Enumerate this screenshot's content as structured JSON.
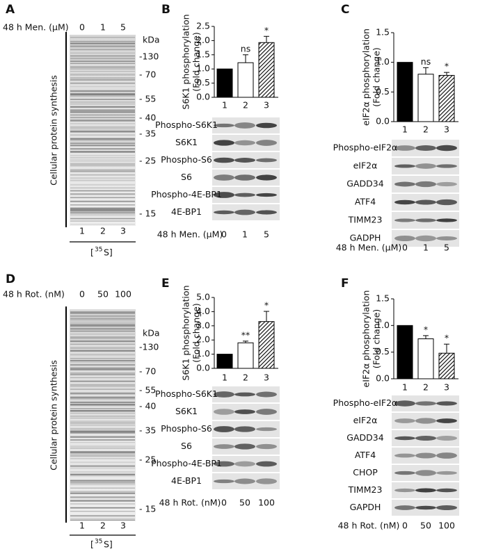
{
  "chart_data": [
    {
      "type": "bar",
      "ylabel": [
        "S6K1 phosphorylation",
        "(Fold change)"
      ],
      "categories": [
        "1",
        "2",
        "3"
      ],
      "values": [
        1.0,
        1.22,
        1.93
      ],
      "errors": [
        null,
        0.28,
        0.22
      ],
      "fills": [
        "#000000",
        "#ffffff",
        "hatch"
      ],
      "ylim": [
        0,
        2.5
      ],
      "yticks": [
        {
          "value": 0,
          "label": "0.0"
        },
        {
          "value": 0.5,
          "label": "0.5"
        },
        {
          "value": 1,
          "label": "1.0"
        },
        {
          "value": 1.5,
          "label": "1.5"
        },
        {
          "value": 2,
          "label": "2.0"
        },
        {
          "value": 2.5,
          "label": "2.5"
        }
      ],
      "annotations": [
        null,
        "ns",
        "*"
      ]
    },
    {
      "type": "bar",
      "ylabel": [
        "eIF2α phosphorylation",
        "(Fold change)"
      ],
      "categories": [
        "1",
        "2",
        "3"
      ],
      "values": [
        1.0,
        0.8,
        0.78
      ],
      "errors": [
        null,
        0.11,
        0.05
      ],
      "fills": [
        "#000000",
        "#ffffff",
        "hatch"
      ],
      "ylim": [
        0,
        1.5
      ],
      "yticks": [
        {
          "value": 0,
          "label": "0.0"
        },
        {
          "value": 0.5,
          "label": "0.5"
        },
        {
          "value": 1,
          "label": "1.0"
        },
        {
          "value": 1.5,
          "label": "1.5"
        }
      ],
      "annotations": [
        null,
        "ns",
        "*"
      ]
    },
    {
      "type": "bar",
      "ylabel": [
        "S6K1 phosphorylation",
        "(Fold change)"
      ],
      "categories": [
        "1",
        "2",
        "3"
      ],
      "values": [
        1.0,
        1.8,
        3.3
      ],
      "errors": [
        null,
        0.12,
        0.72
      ],
      "fills": [
        "#000000",
        "#ffffff",
        "hatch"
      ],
      "ylim": [
        0,
        5
      ],
      "yticks": [
        {
          "value": 0,
          "label": "0.0"
        },
        {
          "value": 1,
          "label": "1.0"
        },
        {
          "value": 2,
          "label": "2.0"
        },
        {
          "value": 3,
          "label": "3.0"
        },
        {
          "value": 4,
          "label": "4.0"
        },
        {
          "value": 5,
          "label": "5.0"
        }
      ],
      "annotations": [
        null,
        "**",
        "*"
      ]
    },
    {
      "type": "bar",
      "ylabel": [
        "eIF2α phosphorylation",
        "(Fold change)"
      ],
      "categories": [
        "1",
        "2",
        "3"
      ],
      "values": [
        1.0,
        0.75,
        0.48
      ],
      "errors": [
        null,
        0.06,
        0.17
      ],
      "fills": [
        "#000000",
        "#ffffff",
        "hatch"
      ],
      "ylim": [
        0,
        1.5
      ],
      "yticks": [
        {
          "value": 0,
          "label": "0.0"
        },
        {
          "value": 0.5,
          "label": "0.5"
        },
        {
          "value": 1,
          "label": "1.0"
        },
        {
          "value": 1.5,
          "label": "1.5"
        }
      ],
      "annotations": [
        null,
        "*",
        "*"
      ]
    }
  ],
  "panels": [
    "A",
    "B",
    "C",
    "D",
    "E",
    "F"
  ],
  "gels": [
    {
      "treatment": "48 h Men. (µM)",
      "doses": [
        "0",
        "1",
        "5"
      ],
      "unit": "kDa",
      "markers": [
        "-130",
        "- 70",
        "- 55",
        "- 40",
        "- 35",
        "- 25",
        "- 15"
      ],
      "ylabel": "Cellular protein synthesis",
      "lanes": [
        "1",
        "2",
        "3"
      ],
      "isotope": [
        "[",
        "35",
        "S]"
      ]
    },
    {
      "treatment": "48 h Rot. (nM)",
      "doses": [
        "0",
        "50",
        "100"
      ],
      "unit": "kDa",
      "markers": [
        "-130",
        "- 70",
        "- 55",
        "- 40",
        "- 35",
        "- 25",
        "- 15"
      ],
      "ylabel": "Cellular protein synthesis",
      "lanes": [
        "1",
        "2",
        "3"
      ],
      "isotope": [
        "[",
        "35",
        "S]"
      ]
    }
  ],
  "blots": [
    {
      "rows": [
        "Phospho-S6K1",
        "S6K1",
        "Phospho-S6",
        "S6",
        "Phospho-4E-BP1",
        "4E-BP1"
      ],
      "treatment": "48 h Men. (µM)",
      "doses": [
        "0",
        "1",
        "5"
      ]
    },
    {
      "rows": [
        "Phospho-eIF2α",
        "eIF2α",
        "GADD34",
        "ATF4",
        "TIMM23",
        "GADPH"
      ],
      "treatment": "48 h Men. (µM)",
      "doses": [
        "0",
        "1",
        "5"
      ]
    },
    {
      "rows": [
        "Phospho-S6K1",
        "S6K1",
        "Phospho-S6",
        "S6",
        "Phospho-4E-BP1",
        "4E-BP1"
      ],
      "treatment": "48 h Rot. (nM)",
      "doses": [
        "0",
        "50",
        "100"
      ]
    },
    {
      "rows": [
        "Phospho-eIF2α",
        "eIF2α",
        "GADD34",
        "ATF4",
        "CHOP",
        "TIMM23",
        "GAPDH"
      ],
      "treatment": "48 h Rot. (nM)",
      "doses": [
        "0",
        "50",
        "100"
      ]
    }
  ]
}
